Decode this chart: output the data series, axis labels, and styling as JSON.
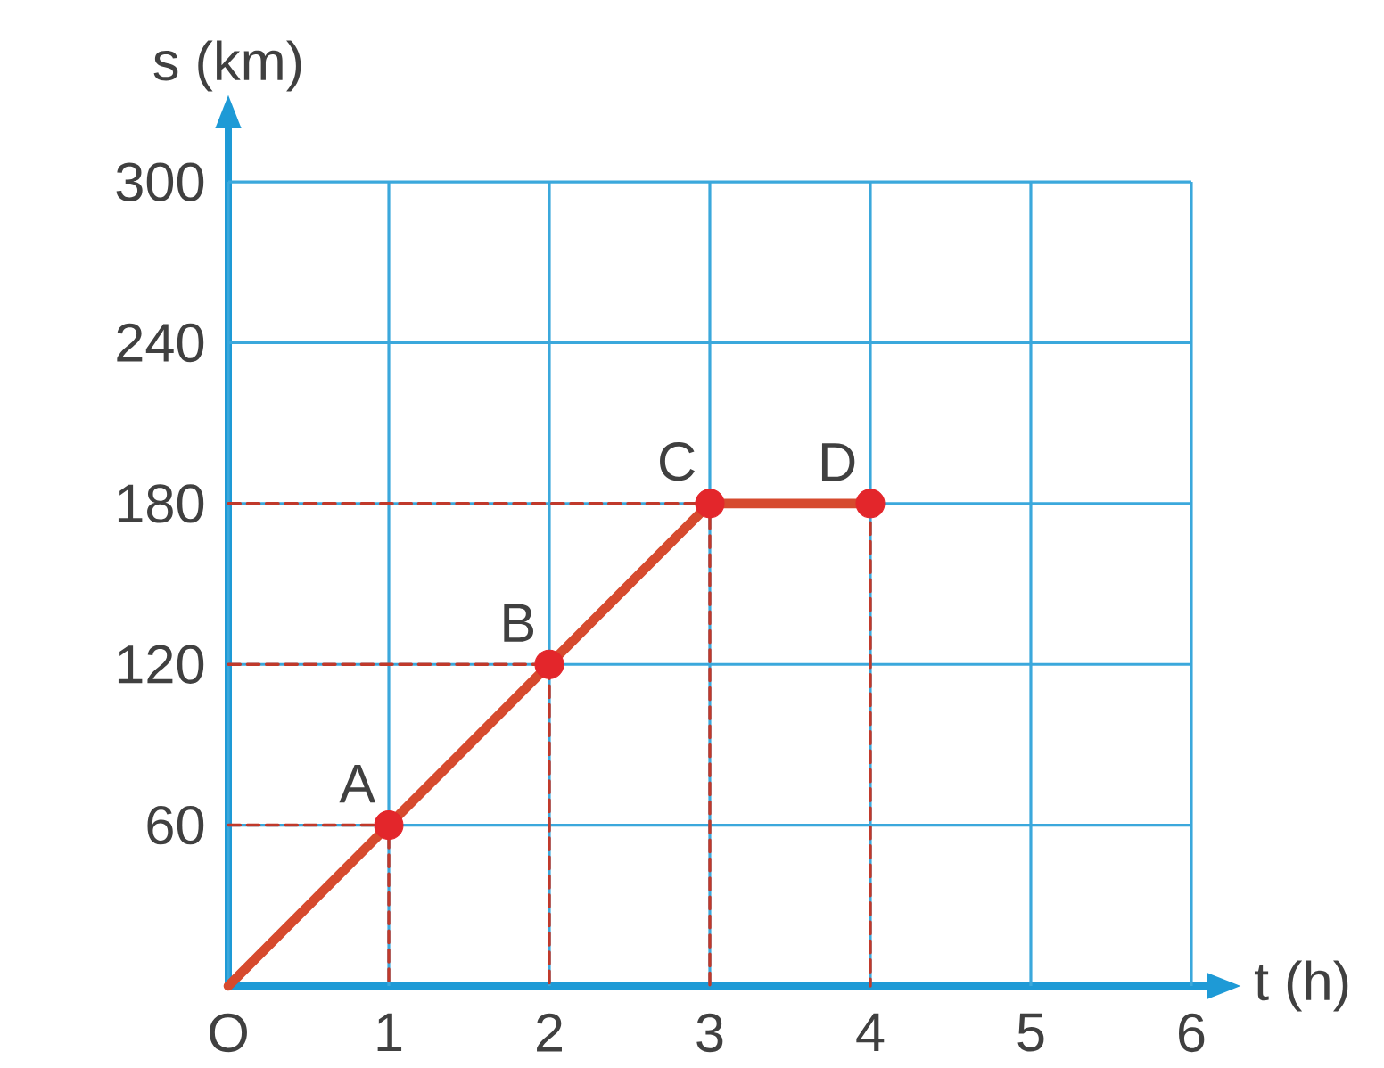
{
  "chart_data": {
    "type": "line",
    "xlabel": "t (h)",
    "ylabel": "s (km)",
    "xlim": [
      0,
      6.1
    ],
    "ylim": [
      0,
      320
    ],
    "xticks": [
      {
        "value": 0,
        "label": "O"
      },
      1,
      2,
      3,
      4,
      5,
      6
    ],
    "yticks": [
      60,
      120,
      180,
      240,
      300
    ],
    "grid": true,
    "series": [
      {
        "color": "#d64a2e",
        "x": [
          0,
          1,
          2,
          3,
          4
        ],
        "values": [
          0,
          60,
          120,
          180,
          180
        ],
        "line_style": "solid",
        "marker": "none"
      },
      {
        "type": "scatter",
        "marker": "circle",
        "color": "#e3262b",
        "x": [
          1,
          2,
          3,
          4
        ],
        "values": [
          60,
          120,
          180,
          180
        ]
      },
      {
        "line_style": "dashed",
        "marker": "none",
        "color": "#c0392b",
        "x": [
          0,
          1,
          1
        ],
        "values": [
          60,
          60,
          0
        ]
      },
      {
        "line_style": "dashed",
        "marker": "none",
        "color": "#c0392b",
        "x": [
          0,
          2,
          2
        ],
        "values": [
          120,
          120,
          0
        ]
      },
      {
        "line_style": "dashed",
        "marker": "none",
        "color": "#c0392b",
        "x": [
          0,
          3,
          3
        ],
        "values": [
          180,
          180,
          0
        ]
      },
      {
        "line_style": "dashed",
        "marker": "none",
        "color": "#c0392b",
        "x": [
          4,
          4
        ],
        "values": [
          180,
          0
        ]
      }
    ],
    "annotations": [
      {
        "text": "A",
        "x": 1,
        "y": 60
      },
      {
        "text": "B",
        "x": 2,
        "y": 120
      },
      {
        "text": "C",
        "x": 3,
        "y": 180
      },
      {
        "text": "D",
        "x": 4,
        "y": 180
      }
    ]
  }
}
